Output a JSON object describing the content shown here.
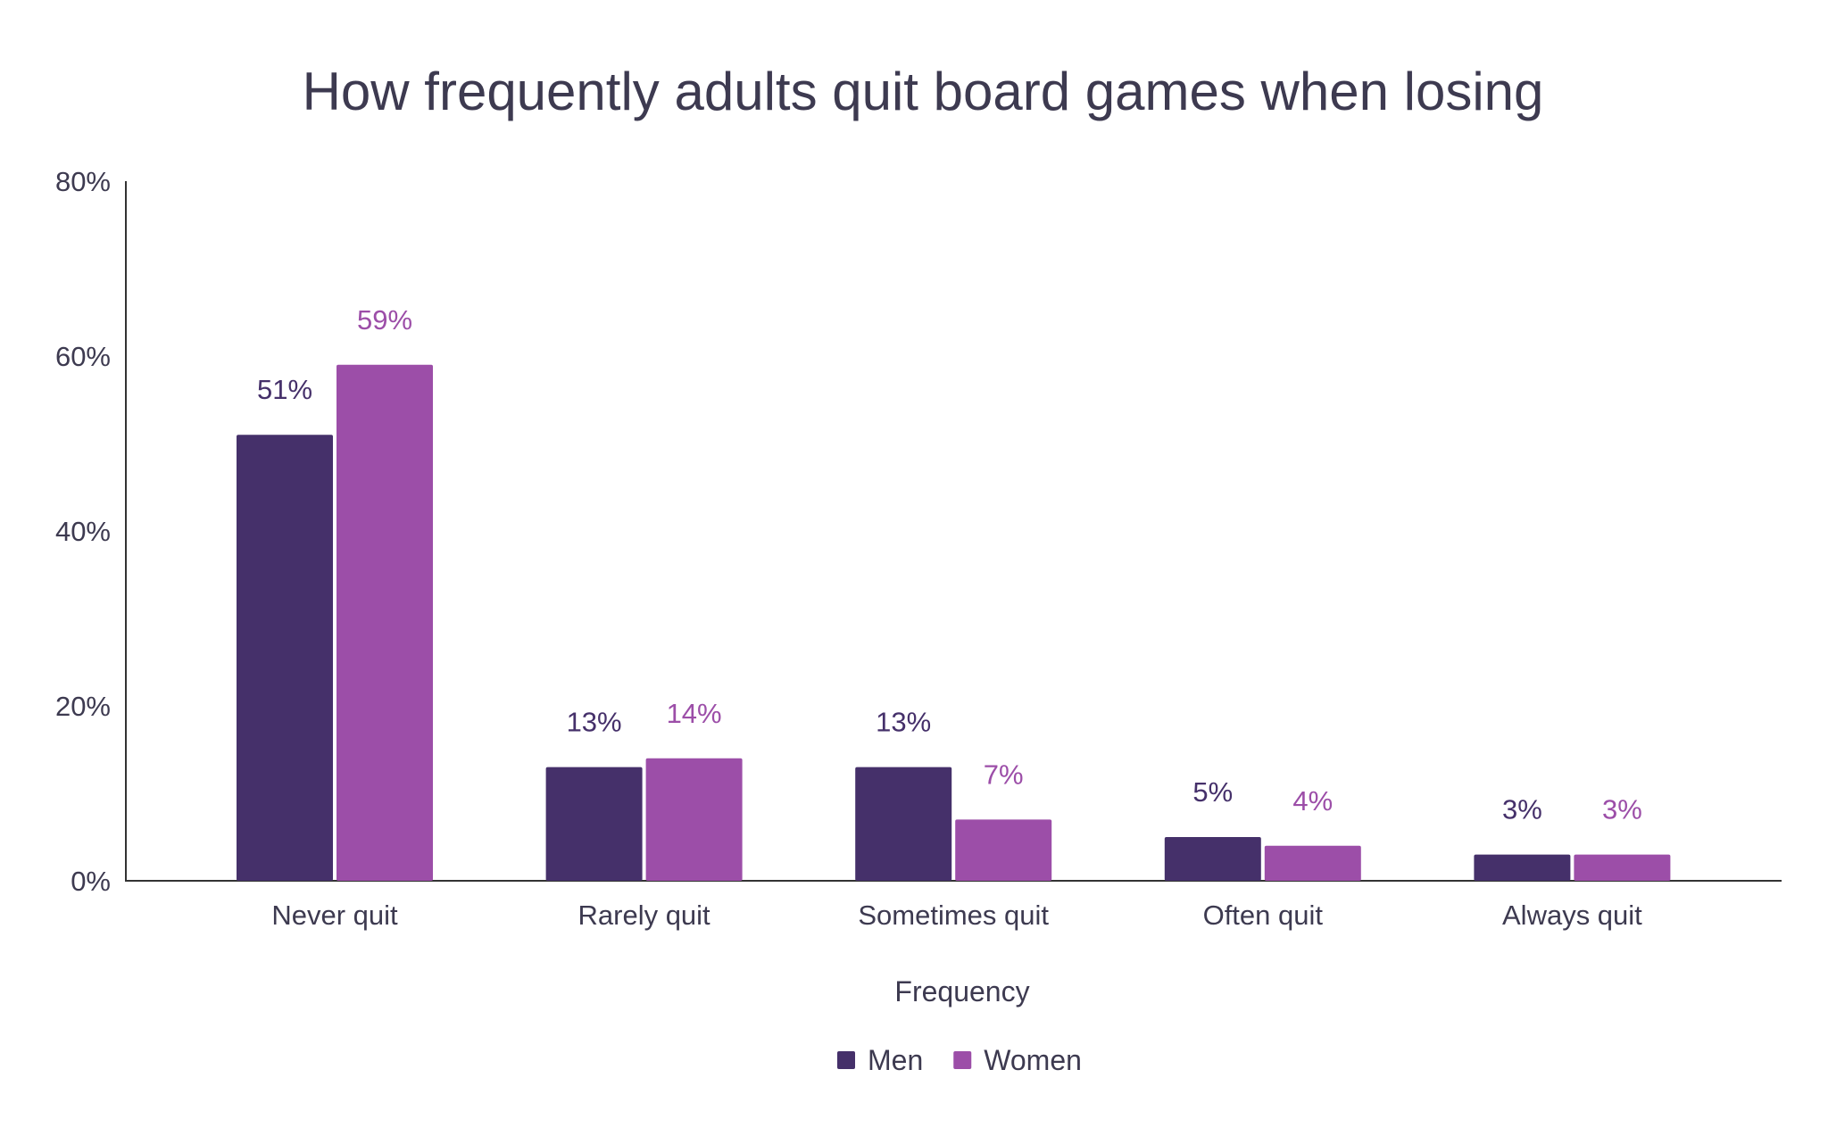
{
  "chart_data": {
    "type": "bar",
    "title": "How frequently adults quit board games when losing",
    "xlabel": "Frequency",
    "ylabel": "",
    "categories": [
      "Never quit",
      "Rarely quit",
      "Sometimes quit",
      "Often quit",
      "Always quit"
    ],
    "series": [
      {
        "name": "Men",
        "color": "#45306a",
        "values": [
          51,
          13,
          13,
          5,
          3
        ],
        "labels": [
          "51%",
          "13%",
          "13%",
          "5%",
          "3%"
        ]
      },
      {
        "name": "Women",
        "color": "#9c4ea8",
        "values": [
          59,
          14,
          7,
          4,
          3
        ],
        "labels": [
          "59%",
          "14%",
          "7%",
          "4%",
          "3%"
        ]
      }
    ],
    "ylim": [
      0,
      80
    ],
    "yticks": [
      "0%",
      "20%",
      "40%",
      "60%",
      "80%"
    ],
    "ytick_values": [
      0,
      20,
      40,
      60,
      80
    ],
    "grid": false,
    "legend": "bottom-center"
  }
}
